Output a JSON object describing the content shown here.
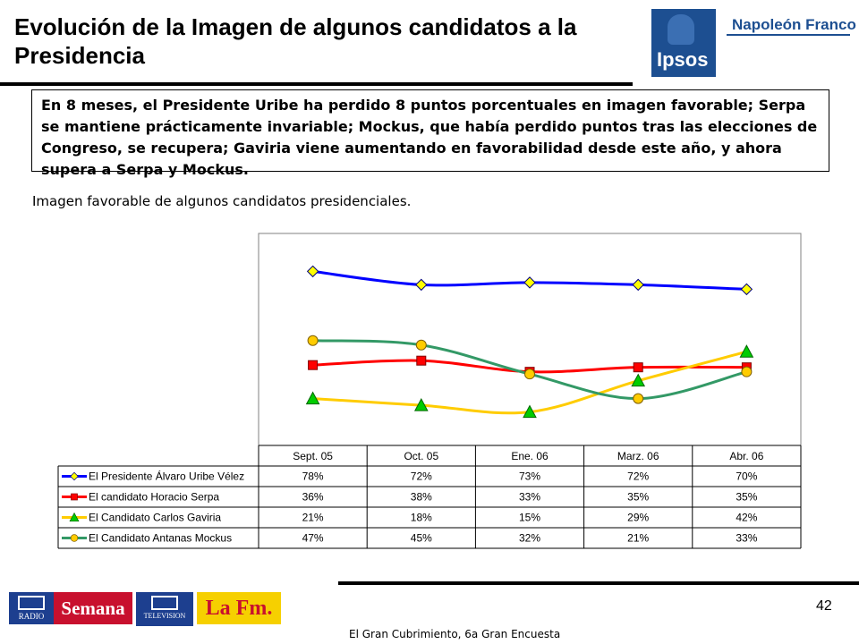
{
  "header": {
    "title": "Evolución de la Imagen de algunos candidatos a la Presidencia",
    "logo_ipsos": "Ipsos",
    "logo_napoleon": "Napoleón Franco"
  },
  "callout": "En 8 meses, el Presidente Uribe ha perdido 8 puntos porcentuales en imagen favorable; Serpa se mantiene prácticamente invariable; Mockus, que había perdido puntos tras las elecciones de Congreso, se recupera; Gaviria viene aumentando en favorabilidad desde este año, y ahora supera a Serpa y Mockus.",
  "subtitle": "Imagen favorable de algunos candidatos presidenciales.",
  "chart_data": {
    "type": "line",
    "categories": [
      "Sept. 05",
      "Oct. 05",
      "Ene. 06",
      "Marz. 06",
      "Abr. 06"
    ],
    "series": [
      {
        "name": "El Presidente Álvaro Uribe Vélez",
        "values": [
          78,
          72,
          73,
          72,
          70
        ],
        "labels": [
          "78%",
          "72%",
          "73%",
          "72%",
          "70%"
        ],
        "color": "#0000ff",
        "marker": "diamond",
        "marker_fill": "#ffff00"
      },
      {
        "name": "El candidato Horacio Serpa",
        "values": [
          36,
          38,
          33,
          35,
          35
        ],
        "labels": [
          "36%",
          "38%",
          "33%",
          "35%",
          "35%"
        ],
        "color": "#ff0000",
        "marker": "square",
        "marker_fill": "#ff0000"
      },
      {
        "name": "El Candidato Carlos Gaviria",
        "values": [
          21,
          18,
          15,
          29,
          42
        ],
        "labels": [
          "21%",
          "18%",
          "15%",
          "29%",
          "42%"
        ],
        "color": "#ffcc00",
        "marker": "triangle",
        "marker_fill": "#00cc00"
      },
      {
        "name": "El Candidato Antanas Mockus",
        "values": [
          47,
          45,
          32,
          21,
          33
        ],
        "labels": [
          "47%",
          "45%",
          "32%",
          "21%",
          "33%"
        ],
        "color": "#339966",
        "marker": "circle",
        "marker_fill": "#ffcc00"
      }
    ],
    "legend": "data-table",
    "grid": false
  },
  "footer": {
    "page_number": "42",
    "text": "El Gran Cubrimiento, 6a Gran Encuesta",
    "logos": {
      "rcn_radio": "RADIO",
      "semana": "Semana",
      "rcn_tv": "TELEVISION",
      "lafm": "La Fm."
    }
  }
}
